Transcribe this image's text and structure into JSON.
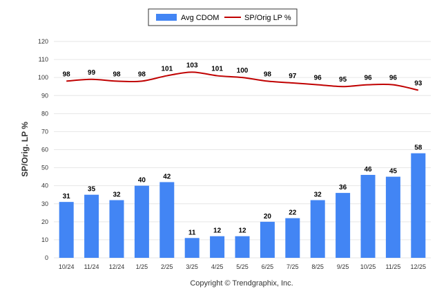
{
  "chart_data": {
    "type": "bar",
    "categories": [
      "10/24",
      "11/24",
      "12/24",
      "1/25",
      "2/25",
      "3/25",
      "4/25",
      "5/25",
      "6/25",
      "7/25",
      "8/25",
      "9/25",
      "10/25",
      "11/25",
      "12/25"
    ],
    "series": [
      {
        "name": "Avg CDOM",
        "type": "bar",
        "values": [
          31,
          35,
          32,
          40,
          42,
          11,
          12,
          12,
          20,
          22,
          32,
          36,
          46,
          45,
          58
        ],
        "color": "#4285f4"
      },
      {
        "name": "SP/Orig LP %",
        "type": "line",
        "values": [
          98,
          99,
          98,
          98,
          101,
          103,
          101,
          100,
          98,
          97,
          96,
          95,
          96,
          96,
          93
        ],
        "color": "#c00000"
      }
    ],
    "ylabel": "SP/Orig. LP %",
    "ylim": [
      0,
      120
    ],
    "yticks": [
      0,
      10,
      20,
      30,
      40,
      50,
      60,
      70,
      80,
      90,
      100,
      110,
      120
    ],
    "grid": true,
    "legend_position": "top-center"
  },
  "footer": {
    "copyright": "Copyright © Trendgraphix, Inc."
  }
}
